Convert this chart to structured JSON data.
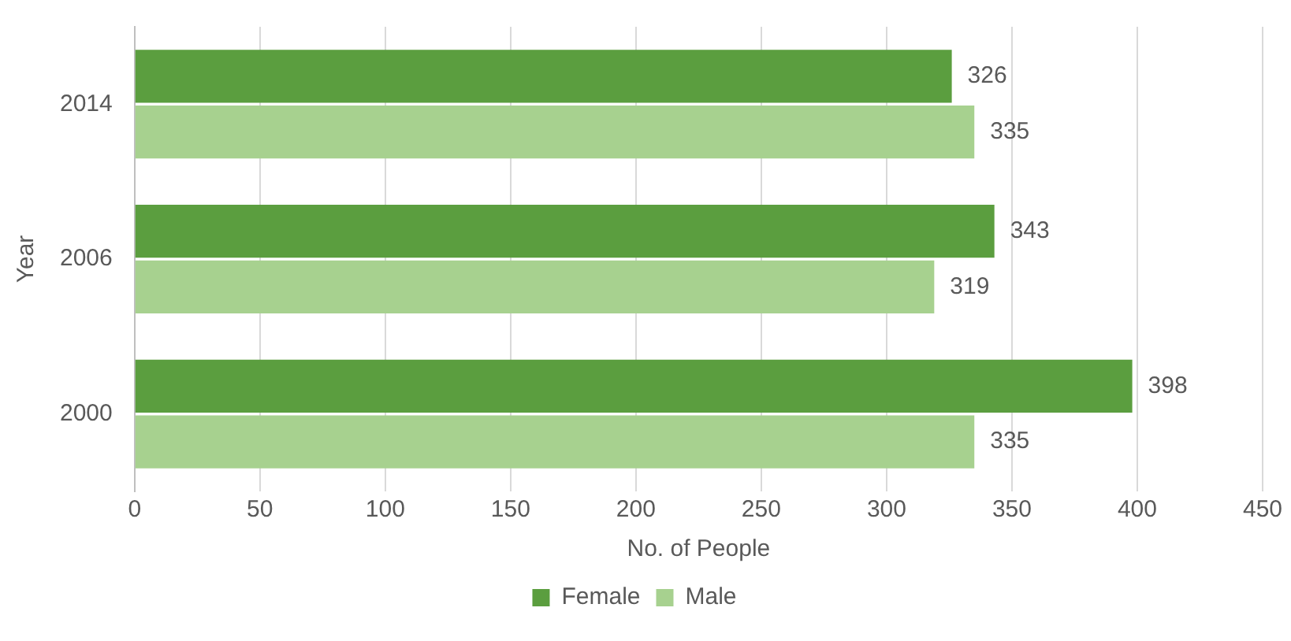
{
  "chart_data": {
    "type": "bar",
    "orientation": "horizontal",
    "xlabel": "No. of People",
    "ylabel": "Year",
    "categories": [
      "2014",
      "2006",
      "2000"
    ],
    "series": [
      {
        "name": "Female",
        "color": "#5b9e3f",
        "values": [
          326,
          343,
          398
        ]
      },
      {
        "name": "Male",
        "color": "#a7d18f",
        "values": [
          335,
          319,
          335
        ]
      }
    ],
    "xlim": [
      0,
      450
    ],
    "xticks": [
      0,
      50,
      100,
      150,
      200,
      250,
      300,
      350,
      400,
      450
    ],
    "grid": "x",
    "legend": "bottom",
    "data_labels": true
  }
}
